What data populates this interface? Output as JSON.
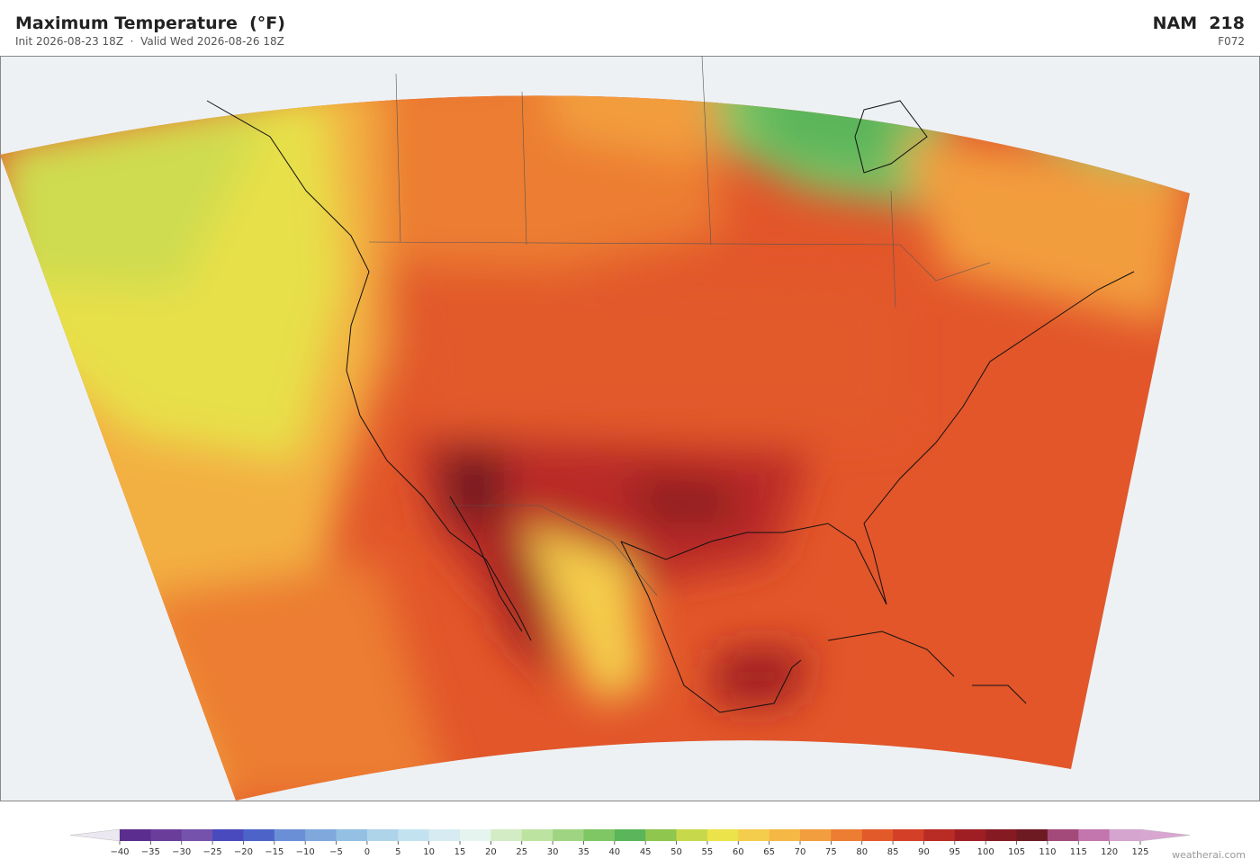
{
  "header": {
    "title": "Maximum Temperature  (°F)",
    "subtitle": "Init 2026-08-23 18Z  ·  Valid Wed 2026-08-26 18Z",
    "model": "NAM  218",
    "forecast_hour": "F072"
  },
  "colorbar": {
    "ticks": [
      {
        "value": -40,
        "label": "−40"
      },
      {
        "value": -35,
        "label": "−35"
      },
      {
        "value": -30,
        "label": "−30"
      },
      {
        "value": -25,
        "label": "−25"
      },
      {
        "value": -20,
        "label": "−20"
      },
      {
        "value": -15,
        "label": "−15"
      },
      {
        "value": -10,
        "label": "−10"
      },
      {
        "value": -5,
        "label": "−5"
      },
      0,
      5,
      10,
      15,
      20,
      25,
      30,
      35,
      40,
      45,
      50,
      55,
      60,
      65,
      70,
      75,
      80,
      85,
      90,
      95,
      100,
      105,
      110,
      115,
      120,
      125
    ],
    "colors": [
      "#5b2d8e",
      "#6a3d9a",
      "#7552ac",
      "#4a4abf",
      "#4d63c8",
      "#6a8fd6",
      "#80a8dc",
      "#93c0e3",
      "#aed4ea",
      "#c2e2ef",
      "#d6ecf2",
      "#e6f4ef",
      "#d3ecc5",
      "#bde3a1",
      "#9fd582",
      "#7fc665",
      "#5bb55a",
      "#8fc64d",
      "#c7d94b",
      "#ece34a",
      "#f4cd4c",
      "#f5b844",
      "#f29d3e",
      "#ec7d32",
      "#e25a2a",
      "#d43f27",
      "#b92b25",
      "#9e1e24",
      "#861a22",
      "#6e1a23",
      "#a34a7a",
      "#c276ad",
      "#d5a4cf"
    ],
    "under_color": "#ece8f2",
    "over_color": "#d9a6d2"
  },
  "watermark": "weatherai.com"
}
